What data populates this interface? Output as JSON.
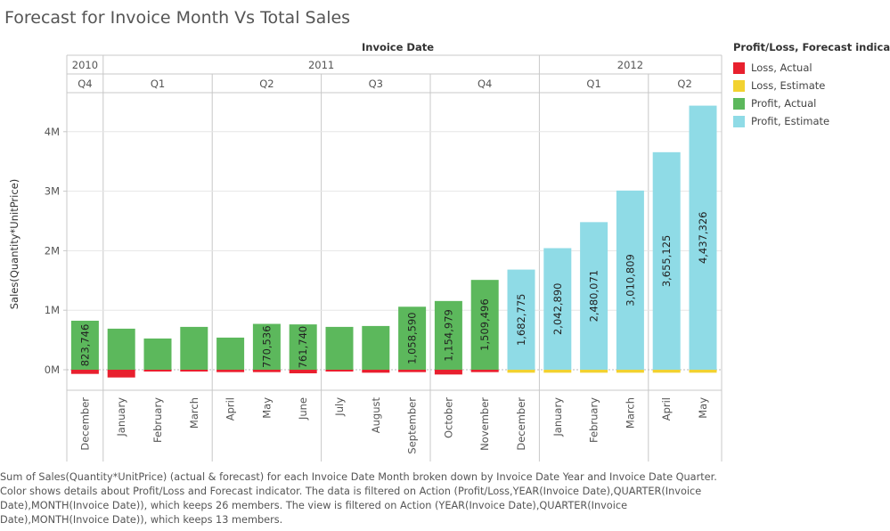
{
  "title": "Forecast for Invoice Month Vs Total Sales",
  "legend": {
    "title": "Profit/Loss, Forecast indicator",
    "items": [
      {
        "label": "Loss, Actual",
        "color": "#e8202e"
      },
      {
        "label": "Loss, Estimate",
        "color": "#f2d230"
      },
      {
        "label": "Profit, Actual",
        "color": "#5cb85c"
      },
      {
        "label": "Profit, Estimate",
        "color": "#8fdbe6"
      }
    ]
  },
  "caption": "Sum of Sales(Quantity*UnitPrice) (actual & forecast)  for each Invoice Date Month broken down by Invoice Date Year and Invoice Date Quarter. Color shows details about Profit/Loss and Forecast indicator. The data is filtered on Action (Profit/Loss,YEAR(Invoice Date),QUARTER(Invoice Date),MONTH(Invoice Date)), which keeps 26 members. The view is filtered on Action (YEAR(Invoice Date),QUARTER(Invoice Date),MONTH(Invoice Date)), which keeps 13 members.",
  "chart_data": {
    "type": "bar",
    "title": "Forecast for Invoice Month Vs Total Sales",
    "column_header": "Invoice Date",
    "ylabel": "Sales(Quantity*UnitPrice)",
    "ylim": [
      -350000,
      4700000
    ],
    "yticks": [
      0,
      1000000,
      2000000,
      3000000,
      4000000
    ],
    "ytick_labels": [
      "0M",
      "1M",
      "2M",
      "3M",
      "4M"
    ],
    "grid": true,
    "legend_position": "right",
    "years": [
      {
        "label": "2010",
        "count": 1
      },
      {
        "label": "2011",
        "count": 12
      },
      {
        "label": "2012",
        "count": 5
      }
    ],
    "quarters": [
      {
        "label": "Q4",
        "count": 1
      },
      {
        "label": "Q1",
        "count": 3
      },
      {
        "label": "Q2",
        "count": 3
      },
      {
        "label": "Q3",
        "count": 3
      },
      {
        "label": "Q4",
        "count": 3
      },
      {
        "label": "Q1",
        "count": 3
      },
      {
        "label": "Q2",
        "count": 2
      }
    ],
    "categories": [
      "December",
      "January",
      "February",
      "March",
      "April",
      "May",
      "June",
      "July",
      "August",
      "September",
      "October",
      "November",
      "December",
      "January",
      "February",
      "March",
      "April",
      "May"
    ],
    "series": [
      {
        "name": "Profit, Actual",
        "values": [
          823746,
          690000,
          525000,
          720000,
          540000,
          770536,
          761740,
          720000,
          735000,
          1058590,
          1154979,
          1509496,
          null,
          null,
          null,
          null,
          null,
          null
        ]
      },
      {
        "name": "Loss, Actual",
        "values": [
          -70000,
          -130000,
          -30000,
          -30000,
          -40000,
          -40000,
          -60000,
          -30000,
          -50000,
          -40000,
          -80000,
          -40000,
          null,
          null,
          null,
          null,
          null,
          null
        ]
      },
      {
        "name": "Profit, Estimate",
        "values": [
          null,
          null,
          null,
          null,
          null,
          null,
          null,
          null,
          null,
          null,
          null,
          null,
          1682775,
          2042890,
          2480071,
          3010809,
          3655125,
          4437326
        ]
      },
      {
        "name": "Loss, Estimate",
        "values": [
          null,
          null,
          null,
          null,
          null,
          null,
          null,
          null,
          null,
          null,
          null,
          null,
          -50000,
          -50000,
          -50000,
          -50000,
          -50000,
          -50000
        ]
      }
    ],
    "data_labels": [
      "823,746",
      "",
      "",
      "",
      "",
      "770,536",
      "761,740",
      "",
      "",
      "1,058,590",
      "1,154,979",
      "1,509,496",
      "1,682,775",
      "2,042,890",
      "2,480,071",
      "3,010,809",
      "3,655,125",
      "4,437,326"
    ]
  }
}
